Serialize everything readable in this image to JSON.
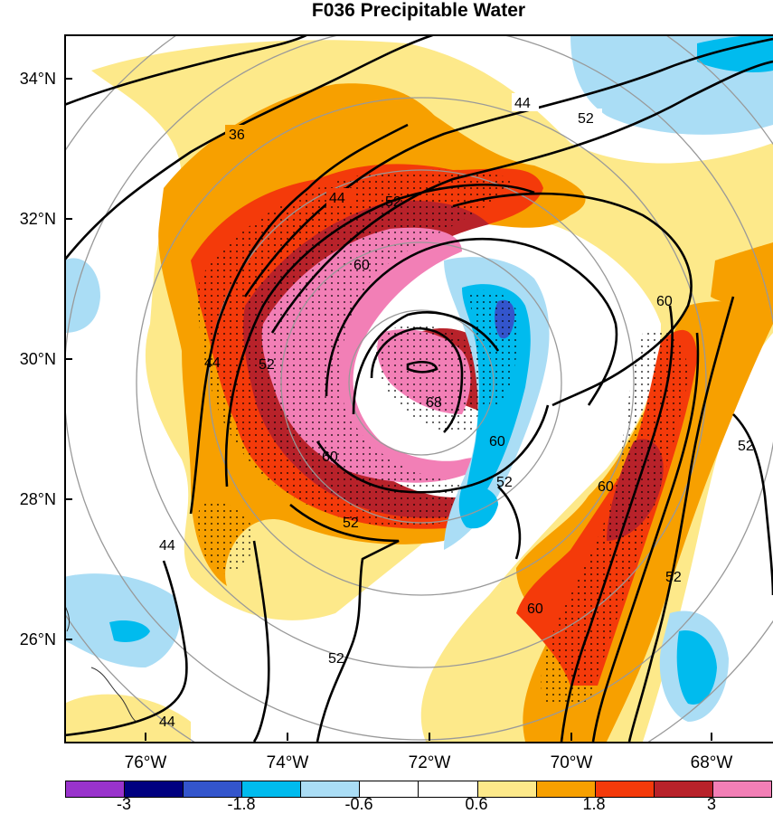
{
  "title": "F036 Precipitable Water",
  "lat_labels": [
    {
      "text": "34°N",
      "lat": 34
    },
    {
      "text": "32°N",
      "lat": 32
    },
    {
      "text": "30°N",
      "lat": 30
    },
    {
      "text": "28°N",
      "lat": 28
    },
    {
      "text": "26°N",
      "lat": 26
    }
  ],
  "lon_labels": [
    {
      "text": "76°W",
      "lon": -76
    },
    {
      "text": "74°W",
      "lon": -74
    },
    {
      "text": "72°W",
      "lon": -72
    },
    {
      "text": "70°W",
      "lon": -70
    },
    {
      "text": "68°W",
      "lon": -68
    }
  ],
  "colorbar": {
    "colors": [
      "#9933cc",
      "#000080",
      "#3355cc",
      "#00bbee",
      "#aaddf5",
      "#ffffff",
      "#ffffff",
      "#fde98a",
      "#f7a000",
      "#f43a0a",
      "#b8222a",
      "#f27fb6"
    ],
    "labels": [
      "-3",
      "-1.8",
      "-0.6",
      "0.6",
      "1.8",
      "3"
    ]
  },
  "contour_labels": [
    "36",
    "44",
    "44",
    "44",
    "44",
    "44",
    "52",
    "52",
    "52",
    "52",
    "52",
    "52",
    "52",
    "52",
    "60",
    "60",
    "60",
    "60",
    "60",
    "60",
    "68"
  ],
  "fill_colors": {
    "light_yellow": "#fde98a",
    "orange": "#f7a000",
    "red_orange": "#f43a0a",
    "dark_red": "#b8222a",
    "pink": "#f27fb6",
    "light_blue": "#aaddf5",
    "cyan": "#00bbee",
    "blue": "#3355cc",
    "purple": "#9933cc"
  }
}
